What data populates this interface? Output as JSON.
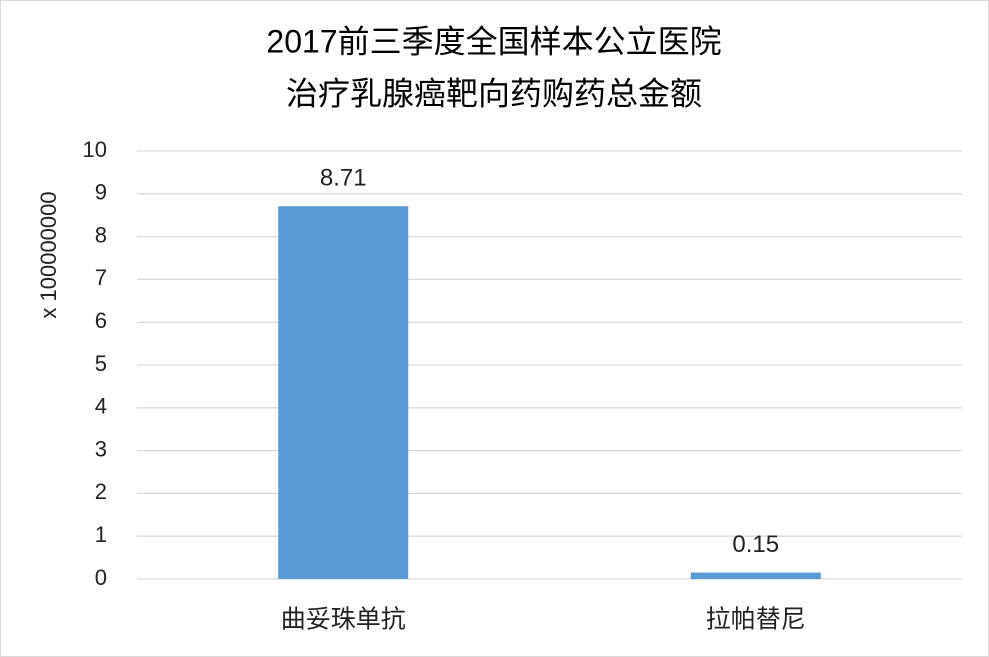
{
  "chart_data": {
    "type": "bar",
    "title": [
      "2017前三季度全国样本公立医院",
      "治疗乳腺癌靶向药购药总金额"
    ],
    "y_label": "x 100000000",
    "categories": [
      "曲妥珠单抗",
      "拉帕替尼"
    ],
    "values": [
      8.71,
      0.15
    ],
    "color": "#5b9bd5",
    "ylim": [
      0,
      10
    ],
    "yticks": [
      0,
      1,
      2,
      3,
      4,
      5,
      6,
      7,
      8,
      9,
      10
    ],
    "grid": true
  }
}
